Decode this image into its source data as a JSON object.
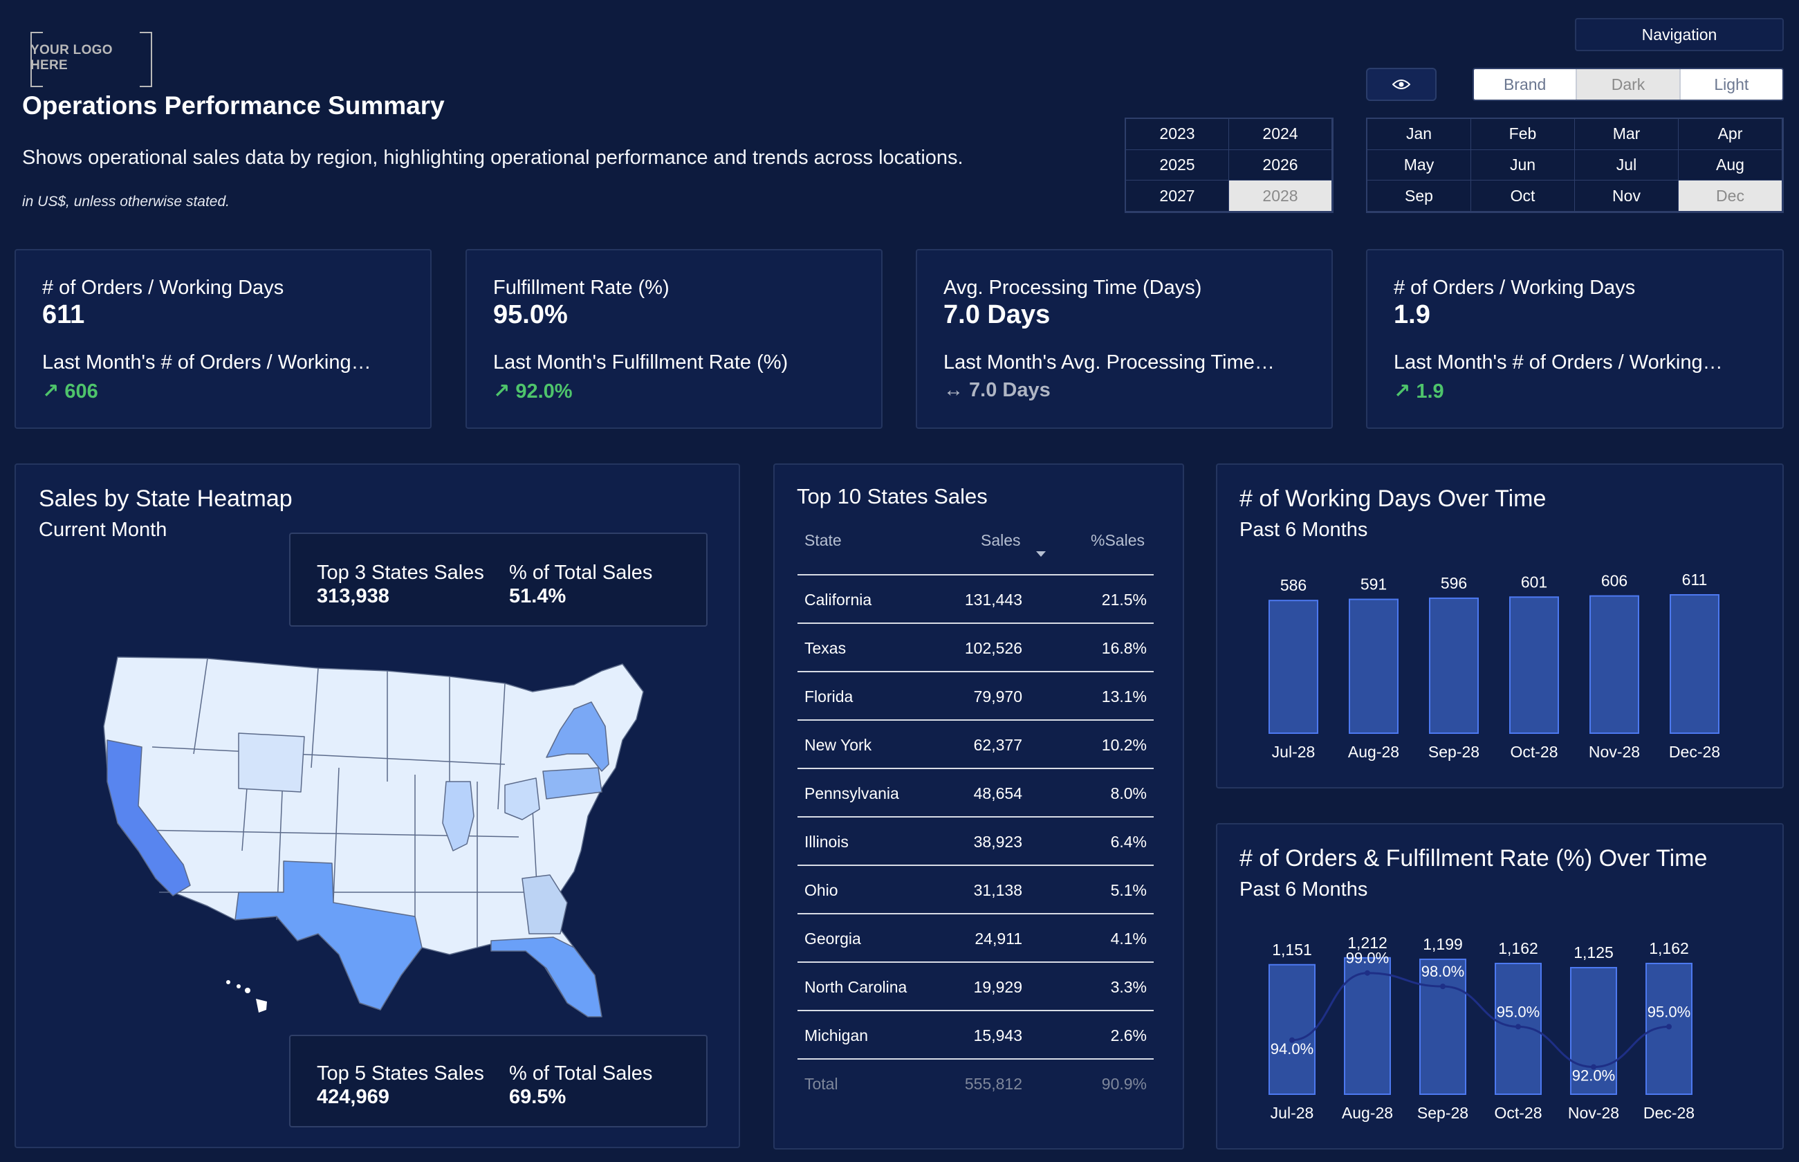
{
  "header": {
    "logo_text": "YOUR LOGO HERE",
    "title": "Operations Performance Summary",
    "subtitle": "Shows operational sales data by region, highlighting operational performance and trends across locations.",
    "note": "in US$, unless otherwise stated."
  },
  "controls": {
    "navigation_label": "Navigation",
    "eye_icon": "eye-icon",
    "theme_options": [
      "Brand",
      "Dark",
      "Light"
    ],
    "theme_selected": "Dark",
    "years": [
      "2023",
      "2024",
      "2025",
      "2026",
      "2027",
      "2028"
    ],
    "year_selected": "2028",
    "months": [
      "Jan",
      "Feb",
      "Mar",
      "Apr",
      "May",
      "Jun",
      "Jul",
      "Aug",
      "Sep",
      "Oct",
      "Nov",
      "Dec"
    ],
    "month_selected": "Dec"
  },
  "kpis": [
    {
      "label": "# of Orders / Working Days",
      "value": "611",
      "prev_label": "Last Month's # of Orders / Working…",
      "delta": "↗ 606",
      "trend": "up"
    },
    {
      "label": "Fulfillment Rate (%)",
      "value": "95.0%",
      "prev_label": "Last Month's Fulfillment Rate (%)",
      "delta": "↗ 92.0%",
      "trend": "up"
    },
    {
      "label": "Avg. Processing Time (Days)",
      "value": "7.0 Days",
      "prev_label": "Last Month's Avg. Processing Time…",
      "delta": "↔ 7.0 Days",
      "trend": "flat"
    },
    {
      "label": "# of Orders / Working Days",
      "value": "1.9",
      "prev_label": "Last Month's # of Orders / Working…",
      "delta": "↗ 1.9",
      "trend": "up"
    }
  ],
  "heatmap": {
    "title": "Sales by State Heatmap",
    "subtitle": "Current Month",
    "top3": {
      "label": "Top 3 States Sales",
      "value": "313,938",
      "pct_label": "% of Total Sales",
      "pct_value": "51.4%"
    },
    "top5": {
      "label": "Top 5 States Sales",
      "value": "424,969",
      "pct_label": "% of Total Sales",
      "pct_value": "69.5%"
    }
  },
  "top10": {
    "title": "Top 10 States Sales",
    "headers": [
      "State",
      "Sales",
      "%Sales"
    ],
    "rows": [
      [
        "California",
        "131,443",
        "21.5%"
      ],
      [
        "Texas",
        "102,526",
        "16.8%"
      ],
      [
        "Florida",
        "79,970",
        "13.1%"
      ],
      [
        "New York",
        "62,377",
        "10.2%"
      ],
      [
        "Pennsylvania",
        "48,654",
        "8.0%"
      ],
      [
        "Illinois",
        "38,923",
        "6.4%"
      ],
      [
        "Ohio",
        "31,138",
        "5.1%"
      ],
      [
        "Georgia",
        "24,911",
        "4.1%"
      ],
      [
        "North Carolina",
        "19,929",
        "3.3%"
      ],
      [
        "Michigan",
        "15,943",
        "2.6%"
      ]
    ],
    "total": [
      "Total",
      "555,812",
      "90.9%"
    ]
  },
  "chart_data": [
    {
      "type": "bar",
      "title": "# of Working Days Over Time",
      "subtitle": "Past 6 Months",
      "categories": [
        "Jul-28",
        "Aug-28",
        "Sep-28",
        "Oct-28",
        "Nov-28",
        "Dec-28"
      ],
      "values": [
        586,
        591,
        596,
        601,
        606,
        611
      ],
      "data_labels": [
        "586",
        "591",
        "596",
        "601",
        "606",
        "611"
      ],
      "bar_color": "#2e4fa0",
      "bar_border": "#4d79f0"
    },
    {
      "type": "bar",
      "title": "# of Orders & Fulfillment Rate (%) Over Time",
      "subtitle": "Past 6 Months",
      "categories": [
        "Jul-28",
        "Aug-28",
        "Sep-28",
        "Oct-28",
        "Nov-28",
        "Dec-28"
      ],
      "series": [
        {
          "values": [
            1151,
            1212,
            1199,
            1162,
            1125,
            1162
          ],
          "labels": [
            "1,151",
            "1,212",
            "1,199",
            "1,162",
            "1,125",
            "1,162"
          ]
        },
        {
          "values": [
            94.0,
            99.0,
            98.0,
            95.0,
            92.0,
            95.0
          ],
          "labels": [
            "94.0%",
            "99.0%",
            "98.0%",
            "95.0%",
            "92.0%",
            "95.0%"
          ]
        }
      ],
      "bar_color": "#2e4fa0",
      "line_color": "#1e2f86"
    }
  ],
  "colors": {
    "background": "#0d1b3e",
    "card": "#0f1f4a",
    "border": "#24355f",
    "accent_up": "#4ec46b",
    "bar": "#2e4fa0"
  }
}
